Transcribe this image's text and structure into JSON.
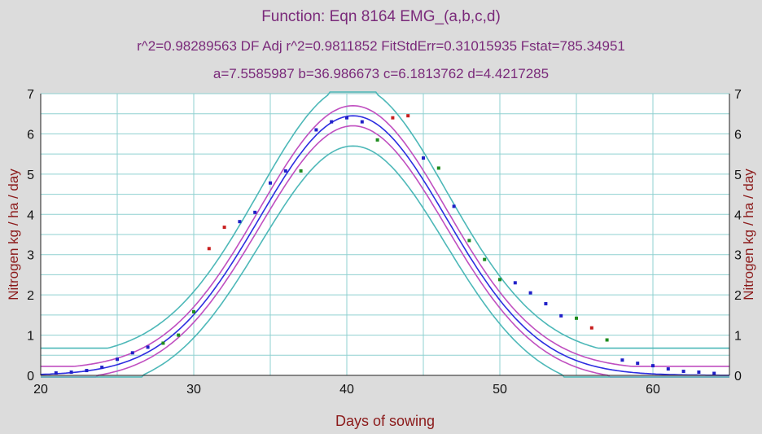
{
  "chart_data": {
    "type": "scatter",
    "title": "Function: Eqn 8164  EMG_(a,b,c,d)",
    "subtitle_stats": "r^2=0.98289563  DF Adj r^2=0.9811852  FitStdErr=0.31015935  Fstat=785.34951",
    "subtitle_params": "a=7.5585987 b=36.986673  c=6.1813762 d=4.4217285",
    "xlabel": "Days of sowing",
    "ylabel": "Nitrogen kg / ha / day",
    "ylabel_right": "Nitrogen kg / ha / day",
    "xlim": [
      20,
      65
    ],
    "ylim": [
      0,
      7
    ],
    "xticks": [
      "20",
      "30",
      "40",
      "50",
      "60"
    ],
    "xtick_values": [
      20,
      30,
      40,
      50,
      60
    ],
    "yticks": [
      "0",
      "1",
      "2",
      "3",
      "4",
      "5",
      "6",
      "7"
    ],
    "ytick_values": [
      0,
      1,
      2,
      3,
      4,
      5,
      6,
      7
    ],
    "grid": true,
    "model": {
      "a": 7.5585987,
      "b": 36.986673,
      "c": 6.1813762,
      "d": 4.4217285
    },
    "curves": [
      {
        "kind": "prediction-upper",
        "color": "#4db8b8",
        "delta": 0.75
      },
      {
        "kind": "confidence-upper",
        "color": "#c04fc0",
        "delta": 0.25
      },
      {
        "kind": "fit",
        "color": "#2d2de0",
        "delta": 0
      },
      {
        "kind": "confidence-lower",
        "color": "#c04fc0",
        "delta": -0.25
      },
      {
        "kind": "prediction-lower",
        "color": "#4db8b8",
        "delta": -0.75
      }
    ],
    "points": [
      {
        "x": 21,
        "y": 0.06,
        "c": "#2020c8"
      },
      {
        "x": 22,
        "y": 0.08,
        "c": "#2020c8"
      },
      {
        "x": 23,
        "y": 0.12,
        "c": "#2020c8"
      },
      {
        "x": 24,
        "y": 0.2,
        "c": "#2020c8"
      },
      {
        "x": 25,
        "y": 0.4,
        "c": "#2020c8"
      },
      {
        "x": 26,
        "y": 0.56,
        "c": "#2020c8"
      },
      {
        "x": 27,
        "y": 0.7,
        "c": "#2020c8"
      },
      {
        "x": 28,
        "y": 0.8,
        "c": "#1e8c1e"
      },
      {
        "x": 29,
        "y": 1.0,
        "c": "#1e8c1e"
      },
      {
        "x": 30,
        "y": 1.58,
        "c": "#1e8c1e"
      },
      {
        "x": 31,
        "y": 3.15,
        "c": "#c81e1e"
      },
      {
        "x": 32,
        "y": 3.68,
        "c": "#c81e1e"
      },
      {
        "x": 33,
        "y": 3.82,
        "c": "#2020c8"
      },
      {
        "x": 34,
        "y": 4.05,
        "c": "#2020c8"
      },
      {
        "x": 35,
        "y": 4.78,
        "c": "#2020c8"
      },
      {
        "x": 36,
        "y": 5.08,
        "c": "#2020c8"
      },
      {
        "x": 37,
        "y": 5.08,
        "c": "#1e8c1e"
      },
      {
        "x": 38,
        "y": 6.1,
        "c": "#2020c8"
      },
      {
        "x": 39,
        "y": 6.3,
        "c": "#2020c8"
      },
      {
        "x": 40,
        "y": 6.4,
        "c": "#2020c8"
      },
      {
        "x": 41,
        "y": 6.3,
        "c": "#2020c8"
      },
      {
        "x": 42,
        "y": 5.85,
        "c": "#1e8c1e"
      },
      {
        "x": 43,
        "y": 6.4,
        "c": "#c81e1e"
      },
      {
        "x": 44,
        "y": 6.45,
        "c": "#c81e1e"
      },
      {
        "x": 45,
        "y": 5.4,
        "c": "#2020c8"
      },
      {
        "x": 46,
        "y": 5.15,
        "c": "#1e8c1e"
      },
      {
        "x": 47,
        "y": 4.2,
        "c": "#2020c8"
      },
      {
        "x": 48,
        "y": 3.35,
        "c": "#1e8c1e"
      },
      {
        "x": 49,
        "y": 2.88,
        "c": "#1e8c1e"
      },
      {
        "x": 50,
        "y": 2.38,
        "c": "#1e8c1e"
      },
      {
        "x": 51,
        "y": 2.3,
        "c": "#2020c8"
      },
      {
        "x": 52,
        "y": 2.05,
        "c": "#2020c8"
      },
      {
        "x": 53,
        "y": 1.78,
        "c": "#2020c8"
      },
      {
        "x": 54,
        "y": 1.48,
        "c": "#2020c8"
      },
      {
        "x": 55,
        "y": 1.42,
        "c": "#1e8c1e"
      },
      {
        "x": 56,
        "y": 1.18,
        "c": "#c81e1e"
      },
      {
        "x": 57,
        "y": 0.88,
        "c": "#1e8c1e"
      },
      {
        "x": 58,
        "y": 0.38,
        "c": "#2020c8"
      },
      {
        "x": 59,
        "y": 0.3,
        "c": "#2020c8"
      },
      {
        "x": 60,
        "y": 0.24,
        "c": "#2020c8"
      },
      {
        "x": 61,
        "y": 0.16,
        "c": "#2020c8"
      },
      {
        "x": 62,
        "y": 0.1,
        "c": "#2020c8"
      },
      {
        "x": 63,
        "y": 0.08,
        "c": "#2020c8"
      },
      {
        "x": 64,
        "y": 0.05,
        "c": "#2020c8"
      }
    ],
    "colors": {
      "background": "#dcdcdc",
      "plot_area": "#ffffff",
      "grid": "#8fd0d0",
      "title": "#7a2a7a",
      "axis_label": "#8b1a1a"
    }
  }
}
